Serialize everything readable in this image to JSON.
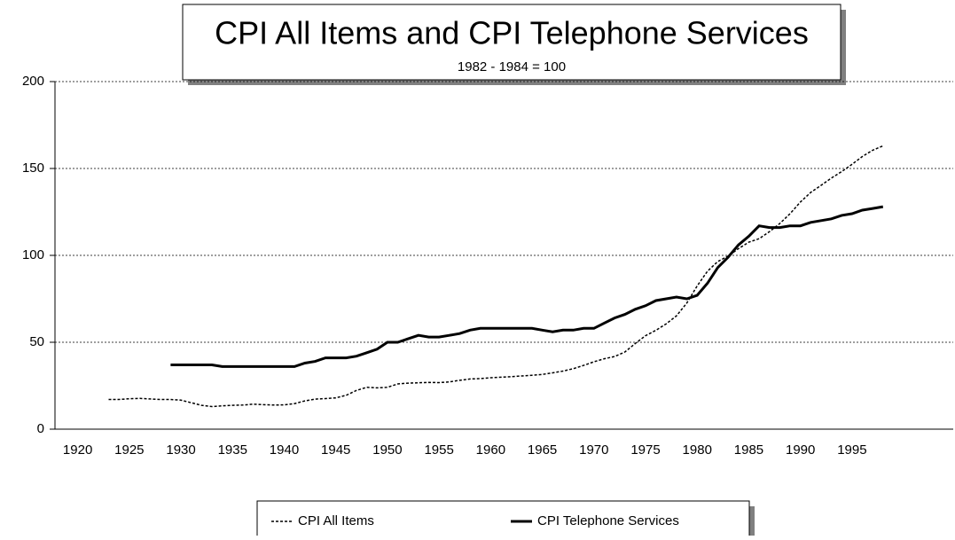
{
  "chart_data": {
    "type": "line",
    "title": "CPI All Items and CPI Telephone Services",
    "subtitle": "1982 - 1984  = 100",
    "x": [
      1923,
      1924,
      1925,
      1926,
      1927,
      1928,
      1929,
      1930,
      1931,
      1932,
      1933,
      1934,
      1935,
      1936,
      1937,
      1938,
      1939,
      1940,
      1941,
      1942,
      1943,
      1944,
      1945,
      1946,
      1947,
      1948,
      1949,
      1950,
      1951,
      1952,
      1953,
      1954,
      1955,
      1956,
      1957,
      1958,
      1959,
      1960,
      1961,
      1962,
      1963,
      1964,
      1965,
      1966,
      1967,
      1968,
      1969,
      1970,
      1971,
      1972,
      1973,
      1974,
      1975,
      1976,
      1977,
      1978,
      1979,
      1980,
      1981,
      1982,
      1983,
      1984,
      1985,
      1986,
      1987,
      1988,
      1989,
      1990,
      1991,
      1992,
      1993,
      1994,
      1995,
      1996,
      1997,
      1998
    ],
    "series": [
      {
        "name": "CPI  All Items",
        "color": "#000000",
        "line_style": "dotted",
        "values": [
          17.1,
          17.1,
          17.5,
          17.7,
          17.4,
          17.1,
          17.1,
          16.7,
          15.2,
          13.7,
          13.0,
          13.4,
          13.7,
          13.9,
          14.4,
          14.1,
          13.9,
          14.0,
          14.7,
          16.3,
          17.3,
          17.6,
          18.0,
          19.5,
          22.3,
          24.1,
          23.8,
          24.1,
          26.0,
          26.5,
          26.7,
          26.9,
          26.8,
          27.2,
          28.1,
          28.9,
          29.1,
          29.6,
          29.9,
          30.2,
          30.6,
          31.0,
          31.5,
          32.4,
          33.4,
          34.8,
          36.7,
          38.8,
          40.5,
          41.8,
          44.4,
          49.3,
          53.8,
          56.9,
          60.6,
          65.2,
          72.6,
          82.4,
          90.9,
          96.5,
          99.6,
          103.9,
          107.6,
          109.6,
          113.6,
          118.3,
          124.0,
          130.7,
          136.2,
          140.3,
          144.5,
          148.2,
          152.4,
          156.9,
          160.5,
          163.0
        ]
      },
      {
        "name": "CPI  Telephone Services",
        "color": "#000000",
        "line_style": "solid",
        "values": [
          null,
          null,
          null,
          null,
          null,
          null,
          37,
          37,
          37,
          37,
          37,
          36,
          36,
          36,
          36,
          36,
          36,
          36,
          36,
          38,
          39,
          41,
          41,
          41,
          42,
          44,
          46,
          50,
          50,
          52,
          54,
          53,
          53,
          54,
          55,
          57,
          58,
          58,
          58,
          58,
          58,
          58,
          57,
          56,
          57,
          57,
          58,
          58,
          61,
          64,
          66,
          69,
          71,
          74,
          75,
          76,
          75,
          77,
          84,
          93,
          99,
          106,
          111,
          117,
          116,
          116,
          117,
          117,
          119,
          120,
          121,
          123,
          124,
          126,
          127,
          128
        ]
      }
    ],
    "xlim": [
      1917.8,
      2004.8
    ],
    "xticks": [
      1920,
      1925,
      1930,
      1935,
      1940,
      1945,
      1950,
      1955,
      1960,
      1965,
      1970,
      1975,
      1980,
      1985,
      1990,
      1995
    ],
    "ylim": [
      0,
      200
    ],
    "yticks": [
      0,
      50,
      100,
      150,
      200
    ],
    "grid": true,
    "legend": "bottom"
  }
}
